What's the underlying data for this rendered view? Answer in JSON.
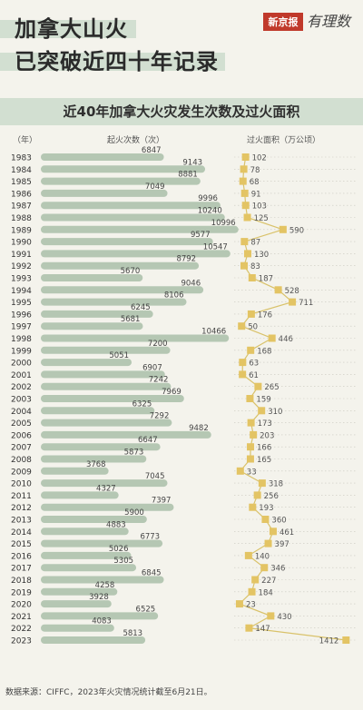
{
  "header": {
    "title_line1": "加拿大山火",
    "title_line2": "已突破近四十年记录",
    "logo_badge": "新京报",
    "logo_script": "有理数"
  },
  "chart_data": {
    "type": "bar",
    "title": "近40年加拿大火灾发生次数及过火面积",
    "xlabel": "",
    "ylabel": "（年）",
    "left_series_label": "起火次数（次）",
    "right_series_label": "过火面积（万公顷）",
    "categories": [
      "1983",
      "1984",
      "1985",
      "1986",
      "1987",
      "1988",
      "1989",
      "1990",
      "1991",
      "1992",
      "1993",
      "1994",
      "1995",
      "1996",
      "1997",
      "1998",
      "1999",
      "2000",
      "2001",
      "2002",
      "2003",
      "2004",
      "2005",
      "2006",
      "2007",
      "2008",
      "2009",
      "2010",
      "2011",
      "2012",
      "2013",
      "2014",
      "2015",
      "2016",
      "2017",
      "2018",
      "2019",
      "2020",
      "2021",
      "2022",
      "2023"
    ],
    "series": [
      {
        "name": "起火次数（次）",
        "type": "bar",
        "color": "#b5c7b3",
        "values": [
          6847,
          9143,
          8881,
          7049,
          9996,
          10240,
          10996,
          9577,
          10547,
          8792,
          5670,
          9046,
          8106,
          6245,
          5681,
          10466,
          7200,
          5051,
          6907,
          7242,
          7969,
          6325,
          7292,
          9482,
          6647,
          5873,
          3768,
          7045,
          4327,
          7397,
          5900,
          4883,
          6773,
          5026,
          5305,
          6845,
          4258,
          3928,
          6525,
          4083,
          5813
        ]
      },
      {
        "name": "过火面积（万公顷）",
        "type": "line",
        "color": "#e3c464",
        "values": [
          102,
          78,
          68,
          91,
          103,
          125,
          590,
          87,
          130,
          83,
          187,
          528,
          711,
          176,
          50,
          446,
          168,
          63,
          61,
          265,
          159,
          310,
          173,
          203,
          166,
          165,
          33,
          318,
          256,
          193,
          360,
          461,
          397,
          140,
          346,
          227,
          184,
          23,
          430,
          147,
          1412
        ]
      }
    ],
    "grid": false,
    "legend": "top"
  },
  "footer": {
    "source": "数据来源：CIFFC，2023年火灾情况统计截至6月21日。"
  },
  "colors": {
    "background": "#f4f3ec",
    "highlight_band": "#d2dfd1",
    "bar": "#b5c7b3",
    "area_marker": "#e3c464",
    "area_line": "#d9c26a",
    "logo_red": "#c0392b"
  }
}
